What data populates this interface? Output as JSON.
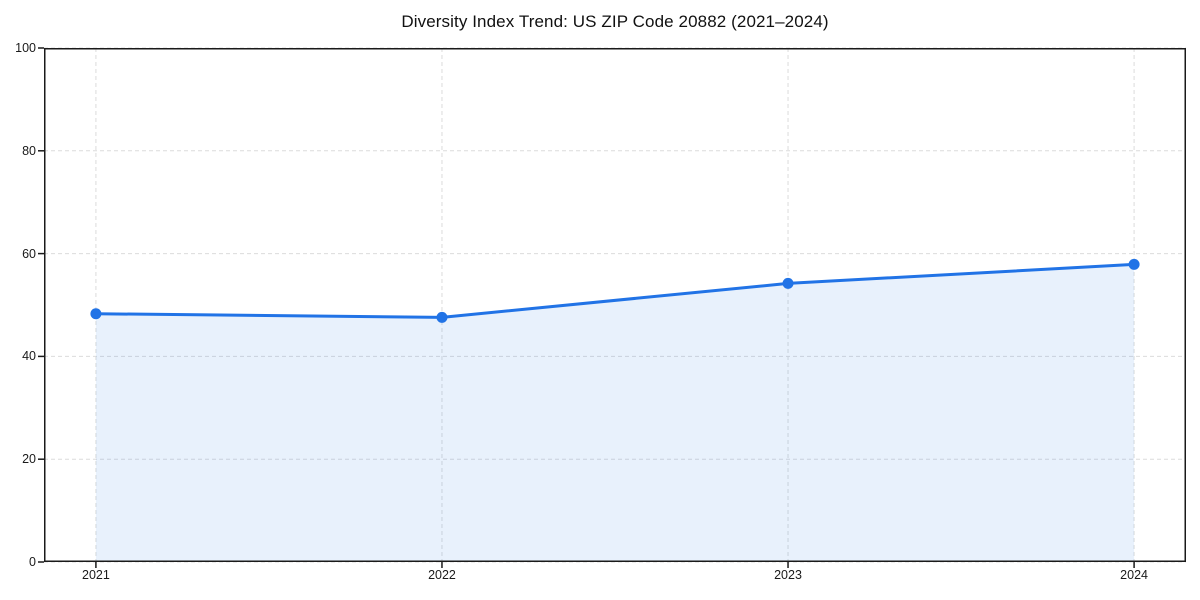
{
  "chart_data": {
    "type": "area",
    "title": "Diversity Index Trend: US ZIP Code 20882 (2021–2024)",
    "categories": [
      2021,
      2022,
      2023,
      2024
    ],
    "series": [
      {
        "name": "Diversity Index",
        "values": [
          48.3,
          47.6,
          54.2,
          57.9
        ]
      }
    ],
    "xlabel": "",
    "ylabel": "",
    "xlim": [
      2020.85,
      2024.15
    ],
    "ylim": [
      0,
      100
    ],
    "yticks": [
      0,
      20,
      40,
      60,
      80,
      100
    ],
    "xticks": [
      2021,
      2022,
      2023,
      2024
    ],
    "grid": true,
    "grid_style": "dashed",
    "legend_position": "none",
    "marker": "circle",
    "colors": {
      "line": "#2173e6",
      "marker": "#2173e6",
      "fill": "rgba(33,115,230,0.10)",
      "grid": "#dcdcdc",
      "frame": "#1a1a1a",
      "tick_text": "#1a1a1a",
      "title_text": "#111111",
      "background": "#ffffff"
    }
  }
}
